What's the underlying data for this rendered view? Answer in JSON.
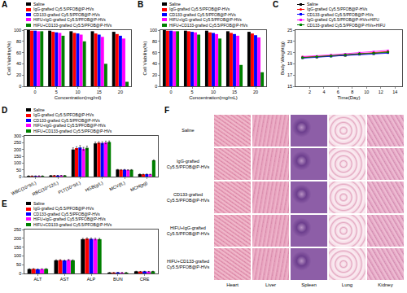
{
  "chart_data": [
    {
      "type": "bar",
      "title": "A",
      "x_label": "Concentration(mg/ml)",
      "y_label": "Cell Viability(%)",
      "categories": [
        "0",
        "5",
        "10",
        "15",
        "20"
      ],
      "ylim": [
        0,
        100
      ],
      "yticks": [
        0,
        20,
        40,
        60,
        80,
        100
      ],
      "grid": false,
      "legend": "top left",
      "series": [
        {
          "name": "Saline",
          "color": "#000000",
          "values": [
            100,
            99,
            98,
            98,
            97
          ]
        },
        {
          "name": "IgG-grafted Cy5.5/PFOB@P-HVs",
          "color": "#ff0000",
          "values": [
            99,
            97,
            95,
            94,
            93
          ]
        },
        {
          "name": "CD133-grafted Cy5.5/PFOB@P-HVs",
          "color": "#0000ff",
          "values": [
            99,
            96,
            94,
            92,
            90
          ]
        },
        {
          "name": "HIFU+IgG-grafted Cy5.5/PFOB@P-HVs",
          "color": "#ff00ff",
          "values": [
            98,
            95,
            92,
            88,
            85
          ]
        },
        {
          "name": "HIFU+CD133-grafted Cy5.5/PFOB@P-HVs",
          "color": "#008000",
          "values": [
            98,
            90,
            80,
            40,
            8
          ]
        }
      ]
    },
    {
      "type": "bar",
      "title": "B",
      "x_label": "Concentration(mg/mL)",
      "y_label": "Cell Viability(%)",
      "categories": [
        "0",
        "5",
        "10",
        "15",
        "20"
      ],
      "ylim": [
        0,
        100
      ],
      "yticks": [
        0,
        20,
        40,
        60,
        80,
        100
      ],
      "grid": false,
      "legend": "top left",
      "series": [
        {
          "name": "Saline",
          "color": "#000000",
          "values": [
            100,
            99,
            99,
            98,
            97
          ]
        },
        {
          "name": "IgG-grafted Cy5.5/PFOB@P-HVs",
          "color": "#ff0000",
          "values": [
            99,
            98,
            96,
            95,
            94
          ]
        },
        {
          "name": "CD133-grafted Cy5.5/PFOB@P-HVs",
          "color": "#0000ff",
          "values": [
            99,
            97,
            95,
            93,
            91
          ]
        },
        {
          "name": "HIFU+IgG-grafted Cy5.5/PFOB@P-HVs",
          "color": "#ff00ff",
          "values": [
            98,
            96,
            93,
            90,
            87
          ]
        },
        {
          "name": "HIFU+CD133-grafted Cy5.5/PFOB@P-HVs",
          "color": "#008000",
          "values": [
            98,
            92,
            85,
            38,
            25
          ]
        }
      ]
    },
    {
      "type": "line",
      "title": "C",
      "x_label": "Time(Day)",
      "y_label": "Body Weight(g)",
      "x": [
        1,
        3,
        5,
        7,
        9,
        11,
        13
      ],
      "xlim": [
        0,
        15
      ],
      "xticks": [
        2,
        4,
        6,
        8,
        10,
        12,
        14
      ],
      "ylim": [
        15,
        25
      ],
      "yticks": [
        15,
        17,
        19,
        21,
        23,
        25
      ],
      "grid": false,
      "legend": "top left",
      "series": [
        {
          "name": "Saline",
          "color": "#000000",
          "marker": "square",
          "values": [
            20.1,
            20.2,
            20.4,
            20.5,
            20.7,
            20.8,
            21.0
          ]
        },
        {
          "name": "IgG-grafted Cy5.5/PFOB@P-HVs",
          "color": "#ff0000",
          "marker": "circle",
          "values": [
            20.2,
            20.3,
            20.5,
            20.6,
            20.8,
            21.0,
            21.2
          ]
        },
        {
          "name": "CD133-grafted Cy5.5/PFOB@P-HVs",
          "color": "#0000ff",
          "marker": "triangle-up",
          "values": [
            20.0,
            20.2,
            20.3,
            20.5,
            20.6,
            20.8,
            20.9
          ]
        },
        {
          "name": "IgG-grafted Cy5.5/PFOB@P-HVs+HIFU",
          "color": "#ff00ff",
          "marker": "triangle-down",
          "values": [
            20.3,
            20.4,
            20.6,
            20.8,
            21.0,
            21.2,
            21.4
          ]
        },
        {
          "name": "CD133-grafted Cy5.5/PFOB@P-HVs+HIFU",
          "color": "#008000",
          "marker": "diamond",
          "values": [
            20.1,
            20.3,
            20.4,
            20.6,
            20.8,
            20.9,
            21.1
          ]
        }
      ]
    },
    {
      "type": "bar",
      "title": "D",
      "categories": [
        "WBC(10^9/L)",
        "RBC(10^12/L)",
        "PLT(10^9/L)",
        "HGB(g/L)",
        "MCV(fL)",
        "MCH(pg)"
      ],
      "ylim": [
        0,
        300
      ],
      "yticks": [
        0,
        50,
        100,
        150,
        200,
        250,
        300
      ],
      "grid": false,
      "legend": "top left",
      "series": [
        {
          "name": "Saline",
          "color": "#000000",
          "values": [
            5,
            8,
            200,
            245,
            52,
            18
          ],
          "errors": [
            0.5,
            0.5,
            12,
            10,
            2,
            1
          ]
        },
        {
          "name": "IgG-grafted Cy5.5/PFOB@P-HVs",
          "color": "#ff0000",
          "values": [
            5.2,
            8.2,
            210,
            250,
            50,
            17
          ],
          "errors": [
            0.5,
            0.5,
            10,
            8,
            2,
            1
          ]
        },
        {
          "name": "CD133-grafted Cy5.5/PFOB@P-HVs",
          "color": "#0000ff",
          "values": [
            4.8,
            7.9,
            215,
            248,
            51,
            18
          ],
          "errors": [
            0.5,
            0.5,
            14,
            9,
            2,
            1
          ]
        },
        {
          "name": "HIFU+IgG-grafted Cy5.5/PFOB@P-HVs",
          "color": "#ff00ff",
          "values": [
            5.1,
            8.1,
            205,
            252,
            49,
            17
          ],
          "errors": [
            0.5,
            0.5,
            11,
            10,
            2,
            1
          ]
        },
        {
          "name": "HIFU+CD133-grafted Cy5.5/PFOB@P-HVs",
          "color": "#008000",
          "values": [
            5,
            8,
            212,
            255,
            50,
            120
          ],
          "errors": [
            0.5,
            0.5,
            13,
            8,
            2,
            4
          ]
        }
      ]
    },
    {
      "type": "bar",
      "title": "E",
      "categories": [
        "ALT",
        "AST",
        "ALP",
        "BUN",
        "CRE"
      ],
      "ylim": [
        0,
        250
      ],
      "yticks": [
        0,
        50,
        100,
        150,
        200,
        250
      ],
      "grid": false,
      "legend": "top left",
      "series": [
        {
          "name": "Saline",
          "color": "#000000",
          "values": [
            25,
            75,
            195,
            5,
            12
          ],
          "errors": [
            2,
            3,
            5,
            0.5,
            1
          ]
        },
        {
          "name": "IgG-grafted Cy5.5/PFOB@P-HVs",
          "color": "#ff0000",
          "values": [
            26,
            76,
            198,
            5,
            11
          ],
          "errors": [
            2,
            3,
            5,
            0.5,
            1
          ]
        },
        {
          "name": "CD133-grafted Cy5.5/PFOB@P-HVs",
          "color": "#0000ff",
          "values": [
            24,
            74,
            197,
            6,
            12
          ],
          "errors": [
            2,
            3,
            5,
            0.5,
            1
          ]
        },
        {
          "name": "HIFU+IgG-grafted Cy5.5/PFOB@P-HVs",
          "color": "#ff00ff",
          "values": [
            25,
            77,
            196,
            5,
            11
          ],
          "errors": [
            2,
            3,
            5,
            0.5,
            1
          ]
        },
        {
          "name": "HIFU+CD133-grafted Cy5.5/PFOB@P-HVs",
          "color": "#008000",
          "values": [
            26,
            75,
            195,
            5,
            12
          ],
          "errors": [
            2,
            3,
            5,
            0.5,
            1
          ]
        }
      ]
    }
  ],
  "image_grid": {
    "title": "F",
    "rows": [
      "Saline",
      "IgG-grafted Cy5.5/PFOB@P-HVs",
      "CD133-grafted Cy5.5/PFOB@P-HVs",
      "HIFU+IgG-grafted Cy5.5/PFOB@P-HVs",
      "HIFU+CD133-grafted Cy5.5/PFOB@P-HVs"
    ],
    "columns": [
      "Heart",
      "Liver",
      "Spleen",
      "Lung",
      "Kidney"
    ]
  }
}
